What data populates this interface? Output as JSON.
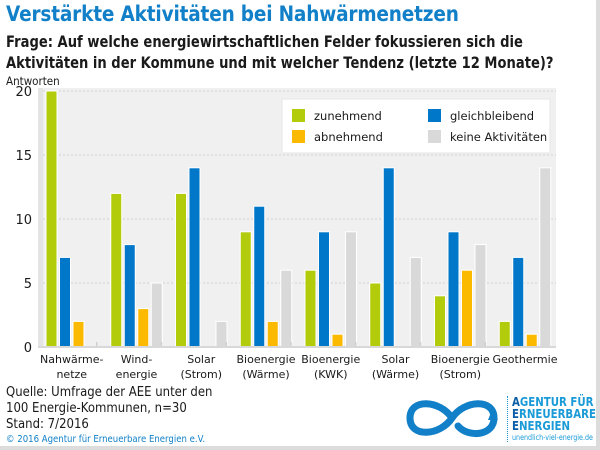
{
  "title": "Verstärkte Aktivitäten bei Nahwärmenetzen",
  "question_line1": "Frage: Auf welche energiewirtschaftlichen Felder fokussieren sich die",
  "question_line2": "Aktivitäten in der Kommune und mit welcher Tendenz (letzte 12 Monate)?",
  "source_line1": "Quelle: Umfrage der AEE unter den",
  "source_line2": "100 Energie-Kommunen, n=30",
  "source_line3": "Stand: 7/2016",
  "copyright": "© 2016 Agentur für Erneuerbare Energien e.V.",
  "logo": {
    "line1_lead": "A",
    "line1_rest": "GENTUR FÜR",
    "line2_lead": "E",
    "line2_rest": "RNEUERBARE",
    "line3_lead": "E",
    "line3_rest": "NERGIEN",
    "url": "unendlich-viel-energie.de",
    "icon": "infinity-loop-icon"
  },
  "colors": {
    "zunehmend": "#b2cb0a",
    "gleichbleibend": "#0077c8",
    "abnehmend": "#fbb900",
    "keine": "#d9d9d9",
    "plot_bg": "#f0f0f0",
    "title": "#1180c8"
  },
  "chart_data": {
    "type": "bar",
    "title": "Verstärkte Aktivitäten bei Nahwärmenetzen",
    "xlabel": "",
    "ylabel": "Antworten",
    "ylim": [
      0,
      20
    ],
    "yticks": [
      0,
      5,
      10,
      15,
      20
    ],
    "grid": true,
    "legend_position": "top-right",
    "categories": [
      [
        "Nahwärme-",
        "netze"
      ],
      [
        "Wind-",
        "energie"
      ],
      [
        "Solar",
        "(Strom)"
      ],
      [
        "Bioenergie",
        "(Wärme)"
      ],
      [
        "Bioenergie",
        "(KWK)"
      ],
      [
        "Solar",
        "(Wärme)"
      ],
      [
        "Bioenergie",
        "(Strom)"
      ],
      [
        "Geothermie",
        ""
      ]
    ],
    "series": [
      {
        "name": "zunehmend",
        "color": "#b2cb0a",
        "values": [
          20,
          12,
          12,
          9,
          6,
          5,
          4,
          2
        ]
      },
      {
        "name": "gleichbleibend",
        "color": "#0077c8",
        "values": [
          7,
          8,
          14,
          11,
          9,
          14,
          9,
          7
        ]
      },
      {
        "name": "abnehmend",
        "color": "#fbb900",
        "values": [
          2,
          3,
          0,
          2,
          1,
          0,
          6,
          1
        ]
      },
      {
        "name": "keine Aktivitäten",
        "color": "#d9d9d9",
        "values": [
          0,
          5,
          2,
          6,
          9,
          7,
          8,
          14
        ]
      }
    ],
    "legend_order": [
      "zunehmend",
      "gleichbleibend",
      "abnehmend",
      "keine Aktivitäten"
    ]
  }
}
